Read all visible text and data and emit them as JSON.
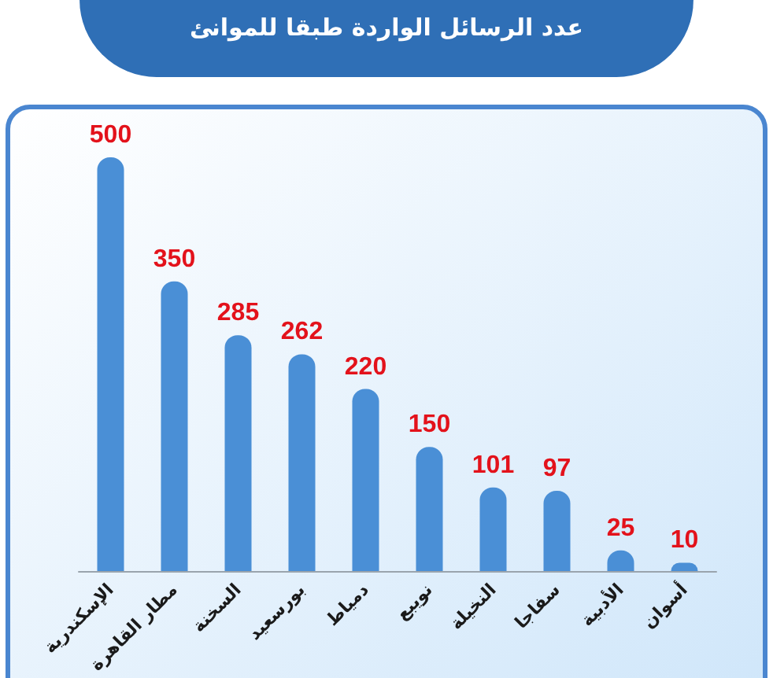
{
  "chart_data": {
    "type": "bar",
    "title": "عدد الرسائل الواردة طبقا للموانئ",
    "categories": [
      "الإسكندرية",
      "مطار القاهرة",
      "السخنة",
      "بورسعيد",
      "دمياط",
      "نويبع",
      "النخيلة",
      "سفاجا",
      "الأدبية",
      "أسوان"
    ],
    "values": [
      500,
      350,
      285,
      262,
      220,
      150,
      101,
      97,
      25,
      10
    ],
    "color": "#4a8fd6",
    "data_labels": true
  }
}
